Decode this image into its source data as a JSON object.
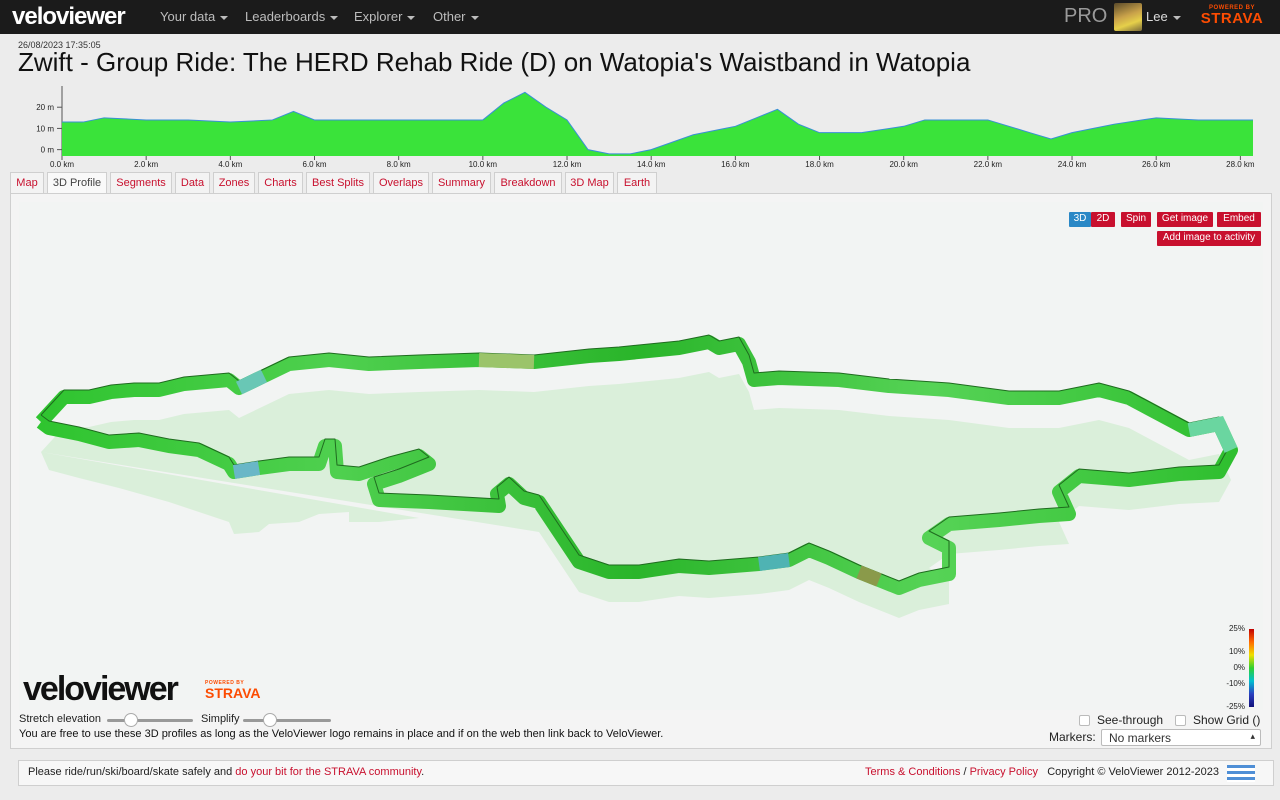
{
  "nav": {
    "logo": "veloviewer",
    "items": [
      "Your data",
      "Leaderboards",
      "Explorer",
      "Other"
    ],
    "pro": "PRO",
    "user": "Lee",
    "powered_by": "POWERED BY",
    "strava": "STRAVA"
  },
  "activity": {
    "date": "26/08/2023 17:35:05",
    "title": "Zwift - Group Ride: The HERD Rehab Ride (D) on Watopia's Waistband in Watopia"
  },
  "elevation_chart": {
    "type": "area",
    "y_ticks": [
      "20 m",
      "10 m",
      "0 m"
    ],
    "x_ticks": [
      "0.0 km",
      "2.0 km",
      "4.0 km",
      "6.0 km",
      "8.0 km",
      "10.0 km",
      "12.0 km",
      "14.0 km",
      "16.0 km",
      "18.0 km",
      "20.0 km",
      "22.0 km",
      "24.0 km",
      "26.0 km",
      "28.0 km"
    ],
    "colors": {
      "fill": "#3ae33a",
      "line": "#3a8fd6"
    }
  },
  "chart_data": {
    "type": "area",
    "x": [
      0,
      0.5,
      1.0,
      2,
      3,
      4,
      5,
      5.5,
      6,
      7,
      8,
      9,
      10,
      10.5,
      11,
      11.5,
      12,
      12.5,
      13,
      13.5,
      14,
      15,
      16,
      16.5,
      17,
      17.5,
      18,
      19,
      20,
      20.5,
      21,
      22,
      23,
      23.5,
      24,
      25,
      26,
      27,
      28.3
    ],
    "y": [
      13,
      13,
      15,
      14,
      14,
      13,
      14,
      18,
      14,
      14,
      14,
      14,
      14,
      22,
      27,
      20,
      14,
      0,
      -2,
      -2,
      0,
      7,
      11,
      15,
      19,
      12,
      8,
      8,
      11,
      14,
      14,
      14,
      8,
      5,
      8,
      12,
      15,
      14,
      14
    ],
    "xlabel": "",
    "ylabel": "",
    "ylim": [
      -3,
      30
    ],
    "xlim": [
      0,
      28.3
    ]
  },
  "tabs": [
    "Map",
    "3D Profile",
    "Segments",
    "Data",
    "Zones",
    "Charts",
    "Best Splits",
    "Overlaps",
    "Summary",
    "Breakdown",
    "3D Map",
    "Earth"
  ],
  "active_tab": "3D Profile",
  "buttons": {
    "b3d": "3D",
    "b2d": "2D",
    "spin": "Spin",
    "get_image": "Get image",
    "embed": "Embed",
    "add_image": "Add image to activity"
  },
  "gradient_legend": [
    "25%",
    "10%",
    "0%",
    "-10%",
    "-25%"
  ],
  "controls": {
    "stretch": "Stretch elevation",
    "simplify": "Simplify",
    "see_through": "See-through",
    "show_grid": "Show Grid ()",
    "markers_label": "Markers:",
    "markers_value": "No markers",
    "note": "You are free to use these 3D profiles as long as the VeloViewer logo remains in place and if on the web then link back to VeloViewer.",
    "vv_logo": "veloviewer",
    "powered_by": "POWERED BY",
    "strava": "STRAVA"
  },
  "footer": {
    "left_text": "Please ride/run/ski/board/skate safely and",
    "left_link": "do your bit for the STRAVA community",
    "terms": "Terms & Conditions",
    "sep": "/",
    "privacy": "Privacy Policy",
    "copyright": "Copyright © VeloViewer 2012-2023"
  }
}
